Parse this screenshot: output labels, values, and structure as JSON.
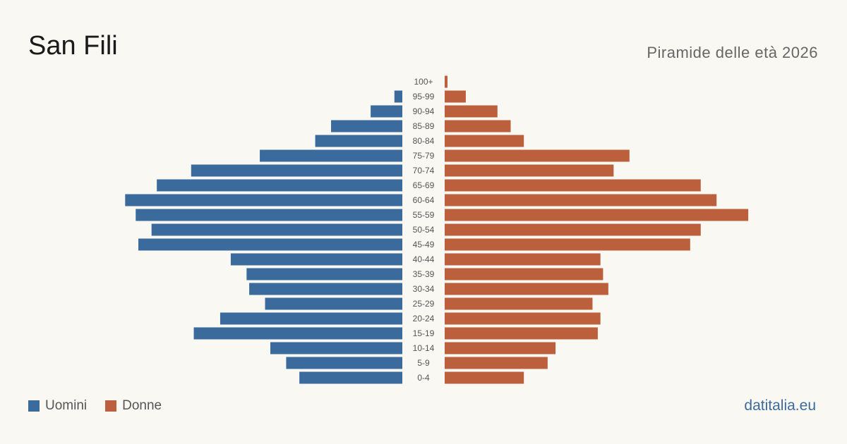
{
  "header": {
    "title": "San Fili",
    "subtitle": "Piramide delle età 2026"
  },
  "legend": {
    "men_label": "Uomini",
    "women_label": "Donne"
  },
  "footer": {
    "brand": "datitalia.eu"
  },
  "colors": {
    "men": "#3b6b9c",
    "women": "#bc5f3c",
    "tick_text": "#555555"
  },
  "chart_data": {
    "type": "bar",
    "orientation": "horizontal-pyramid",
    "categories": [
      "100+",
      "95-99",
      "90-94",
      "85-89",
      "80-84",
      "75-79",
      "70-74",
      "65-69",
      "60-64",
      "55-59",
      "50-54",
      "45-49",
      "40-44",
      "35-39",
      "30-34",
      "25-29",
      "20-24",
      "15-19",
      "10-14",
      "5-9",
      "0-4"
    ],
    "series": [
      {
        "name": "Uomini",
        "values": [
          0,
          3,
          12,
          27,
          33,
          54,
          80,
          93,
          105,
          101,
          95,
          100,
          65,
          59,
          58,
          52,
          69,
          79,
          50,
          44,
          39
        ]
      },
      {
        "name": "Donne",
        "values": [
          1,
          8,
          20,
          25,
          30,
          70,
          64,
          97,
          103,
          115,
          97,
          93,
          59,
          60,
          62,
          56,
          59,
          58,
          42,
          39,
          30
        ]
      }
    ],
    "grid": false,
    "legend_position": "bottom-left"
  }
}
